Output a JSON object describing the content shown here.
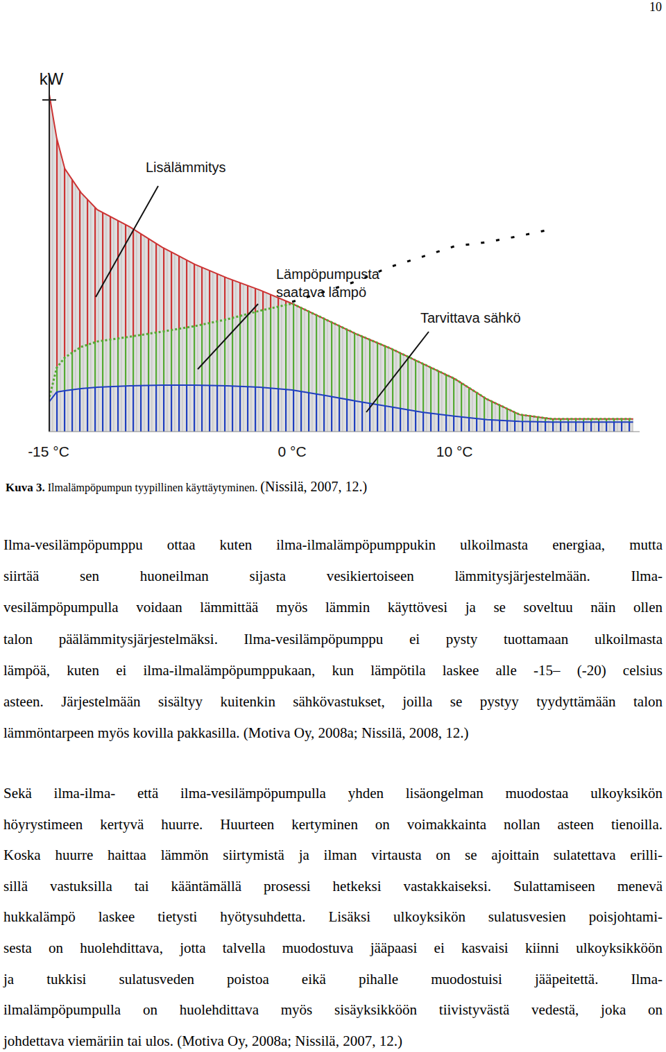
{
  "page_number": "10",
  "chart_data": {
    "type": "area",
    "y_label": "kW",
    "x": [
      -15,
      -14.5,
      -14,
      -13,
      -12,
      -10,
      -8,
      -6,
      -4,
      -2,
      0,
      2,
      4,
      6,
      8,
      10,
      12,
      14,
      16,
      18,
      21
    ],
    "xlim": [
      -15,
      21.4
    ],
    "ylim": [
      0,
      100
    ],
    "xticks": [
      {
        "value": -15,
        "label": "-15 °C"
      },
      {
        "value": 0,
        "label": "0 °C"
      },
      {
        "value": 10,
        "label": "10 °C"
      }
    ],
    "tick_labels": "x",
    "grid": false,
    "stacked": false,
    "series": [
      {
        "name": "Lisälämmitys",
        "type": "area",
        "color": "#cc3333",
        "line_style": "solid",
        "values": [
          100,
          86,
          77,
          70,
          65,
          60,
          54,
          49,
          45,
          41.5,
          37.5,
          33,
          28.5,
          24.5,
          20,
          15.5,
          9.5,
          5,
          3.7,
          3.7,
          3.7
        ]
      },
      {
        "name": "Lämpöpumpusta saatava lämpö",
        "type": "area",
        "color": "#55aa33",
        "line_style": "dotted",
        "values": [
          9,
          18.7,
          21.7,
          24.8,
          26.4,
          27.8,
          29.3,
          30.9,
          32.9,
          35.4,
          37.5,
          33,
          28.5,
          24.5,
          20,
          15.5,
          9.5,
          5,
          3.7,
          3.7,
          3.7
        ]
      },
      {
        "name": "Tarvittava sähkö",
        "type": "area",
        "color": "#1f3fbf",
        "line_style": "solid",
        "values": [
          8.5,
          11.6,
          12,
          12.6,
          13,
          13.4,
          13.6,
          13.6,
          13.4,
          13,
          12.2,
          10.6,
          8.9,
          7.3,
          5.7,
          4.5,
          3.5,
          3,
          2.8,
          2.8,
          2.8
        ]
      },
      {
        "type": "line",
        "color": "#000000",
        "line_style": "dashed",
        "values": [
          null,
          null,
          null,
          null,
          null,
          null,
          null,
          null,
          null,
          null,
          38,
          41,
          44.1,
          48.2,
          51.2,
          54.3,
          55.5,
          57.3,
          59.3,
          null,
          null
        ]
      }
    ]
  },
  "caption": {
    "label": "Kuva 3.",
    "text": "Ilmalämpöpumpun tyypillinen käyttäytyminen.",
    "source": "(Nissilä, 2007, 12.)"
  },
  "paragraphs": [
    {
      "lines": [
        "Ilma-vesilämpöpumppu ottaa kuten ilma-ilmalämpöpumppukin ulkoilmasta energiaa, mutta",
        "siirtää sen huoneilman sijasta vesikiertoiseen lämmitysjärjestelmään. Ilma-",
        "vesilämpöpumpulla voidaan lämmittää myös lämmin käyttövesi ja se soveltuu näin ollen",
        "talon päälämmitysjärjestelmäksi. Ilma-vesilämpöpumppu ei pysty tuottamaan ulkoilmasta",
        "lämpöä, kuten ei ilma-ilmalämpöpumppukaan, kun lämpötila laskee alle -15– (-20) celsius",
        "asteen. Järjestelmään sisältyy kuitenkin sähkövastukset, joilla se pystyy tyydyttämään talon",
        "lämmöntarpeen myös kovilla pakkasilla. (Motiva Oy, 2008a; Nissilä, 2008, 12.)"
      ]
    },
    {
      "lines": [
        "Sekä ilma-ilma- että ilma-vesilämpöpumpulla yhden lisäongelman muodostaa ulkoyksikön",
        "höyrystimeen kertyvä huurre. Huurteen kertyminen on voimakkainta nollan asteen tienoilla.",
        "Koska huurre haittaa lämmön siirtymistä ja ilman virtausta on se ajoittain sulatettava erilli-",
        "sillä vastuksilla tai kääntämällä prosessi hetkeksi vastakkaiseksi. Sulattamiseen menevä",
        "hukkalämpö laskee tietysti hyötysuhdetta. Lisäksi ulkoyksikön sulatusvesien poisjohtami-",
        "sesta on huolehdittava, jotta talvella muodostuva jääpaasi ei kasvaisi kiinni ulkoyksikköön",
        "ja tukkisi sulatusveden poistoa eikä pihalle muodostuisi jääpeitettä. Ilma-",
        "ilmalämpöpumpulla on huolehdittava myös sisäyksikköön tiivistyvästä vedestä, joka on",
        "johdettava viemäriin tai ulos. (Motiva Oy, 2008a; Nissilä, 2007, 12.)"
      ]
    }
  ]
}
